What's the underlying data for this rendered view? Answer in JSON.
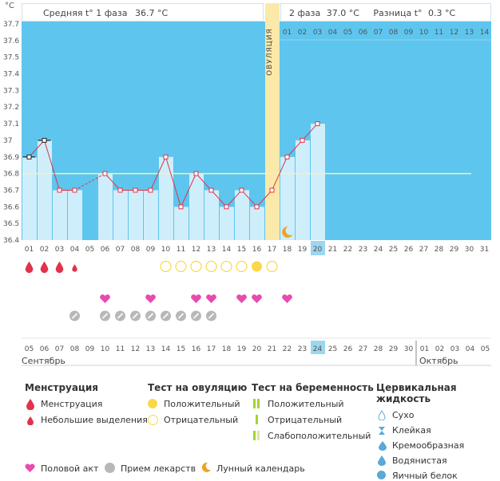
{
  "unit": "°C",
  "header": {
    "phase1_label": "Средняя t° 1 фаза",
    "phase1_value": "36.7 °C",
    "phase2_label": "2 фаза",
    "phase2_value": "37.0 °C",
    "diff_label": "Разница t°",
    "diff_value": "0.3 °C"
  },
  "ovulation_label": "ОВУЛЯЦИЯ",
  "y_ticks": [
    "37.7",
    "37.6",
    "37.5",
    "37.4",
    "37.3",
    "37.2",
    "37.1",
    "37",
    "36.9",
    "36.8",
    "36.7",
    "36.6",
    "36.5",
    "36.4"
  ],
  "top_days": [
    "01",
    "02",
    "03",
    "04",
    "05",
    "06",
    "07",
    "08",
    "09",
    "10",
    "11",
    "12",
    "13",
    "14"
  ],
  "cycle_days": [
    "01",
    "02",
    "03",
    "04",
    "05",
    "06",
    "07",
    "08",
    "09",
    "10",
    "11",
    "12",
    "13",
    "14",
    "15",
    "16",
    "17",
    "18",
    "19",
    "20",
    "21",
    "22",
    "23",
    "24",
    "25",
    "26",
    "27",
    "28",
    "29",
    "30",
    "31"
  ],
  "current_day": "20",
  "dates": [
    {
      "d": "05",
      "red": false
    },
    {
      "d": "06",
      "red": true
    },
    {
      "d": "07",
      "red": true
    },
    {
      "d": "08",
      "red": false
    },
    {
      "d": "09",
      "red": false
    },
    {
      "d": "10",
      "red": false
    },
    {
      "d": "11",
      "red": false
    },
    {
      "d": "12",
      "red": false
    },
    {
      "d": "13",
      "red": true
    },
    {
      "d": "14",
      "red": true
    },
    {
      "d": "15",
      "red": false
    },
    {
      "d": "16",
      "red": false
    },
    {
      "d": "17",
      "red": false
    },
    {
      "d": "18",
      "red": false
    },
    {
      "d": "19",
      "red": false
    },
    {
      "d": "20",
      "red": true
    },
    {
      "d": "21",
      "red": true
    },
    {
      "d": "22",
      "red": false
    },
    {
      "d": "23",
      "red": false
    },
    {
      "d": "24",
      "red": false
    },
    {
      "d": "25",
      "red": false
    },
    {
      "d": "26",
      "red": false
    },
    {
      "d": "27",
      "red": true
    },
    {
      "d": "28",
      "red": true
    },
    {
      "d": "29",
      "red": false
    },
    {
      "d": "30",
      "red": false
    },
    {
      "d": "01",
      "red": false
    },
    {
      "d": "02",
      "red": false
    },
    {
      "d": "03",
      "red": false
    },
    {
      "d": "04",
      "red": true
    },
    {
      "d": "05",
      "red": true
    }
  ],
  "current_date": "24",
  "month_left": "Сентябрь",
  "month_right": "Октябрь",
  "temps": [
    36.9,
    37.0,
    36.7,
    36.7,
    null,
    36.8,
    36.7,
    36.7,
    36.7,
    36.9,
    36.6,
    36.8,
    36.7,
    36.6,
    36.7,
    36.6,
    36.7,
    36.9,
    37.0,
    37.1
  ],
  "coverline": 36.8,
  "ovulation_day": 17,
  "colors": {
    "chart_bg": "#5ec5ee",
    "bar": "#cfeefb",
    "ovulation": "#fbe9a9",
    "line": "#e0334a",
    "coverline": "#f4f1b4",
    "accent_day": "#9bd7ef",
    "weekend_red": "#e0334a"
  },
  "markers": {
    "menstruation": [
      1,
      2,
      3
    ],
    "light_spotting": [
      4
    ],
    "ovulation_negative": [
      10,
      11,
      12,
      13,
      14,
      15,
      17
    ],
    "ovulation_positive": [
      16
    ],
    "intercourse": [
      6,
      9,
      12,
      13,
      15,
      16,
      18
    ],
    "medication": [
      4,
      6,
      7,
      8,
      9,
      10,
      11,
      12,
      13
    ],
    "moon": [
      18
    ]
  },
  "legend": {
    "menstruation_title": "Менструация",
    "menstruation": "Менструация",
    "light": "Небольшие выделения",
    "ov_title": "Тест на овуляцию",
    "ov_pos": "Положительный",
    "ov_neg": "Отрицательный",
    "preg_title": "Тест на беременность",
    "preg_pos": "Положительный",
    "preg_neg": "Отрицательный",
    "preg_weak": "Слабоположительный",
    "cerv_title": "Цервикальная жидкость",
    "cerv_dry": "Сухо",
    "cerv_sticky": "Клейкая",
    "cerv_creamy": "Кремообразная",
    "cerv_watery": "Водянистая",
    "cerv_egg": "Яичный белок",
    "intercourse": "Половой акт",
    "medication": "Прием лекарств",
    "moon": "Лунный календарь"
  }
}
